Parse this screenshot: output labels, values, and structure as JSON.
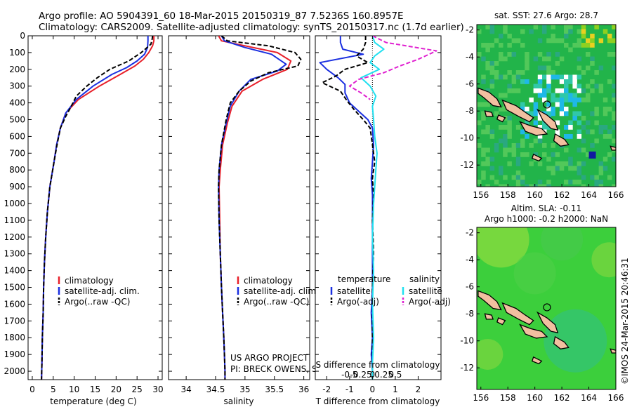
{
  "header": {
    "line1": "Argo profile: AO 5904391_60 18-Mar-2015 20150319_87 7.5236S 160.8957E",
    "line2": "Climatology: CARS2009. Satellite-adjusted climatology: synTS_20150317.nc (1.7d earlier)"
  },
  "credits": {
    "project": "US ARGO PROJECT",
    "pi": "PI: BRECK OWENS, STEVE JAYNE, P.E. ROBBINS",
    "side": "©IMOS 24-Mar-2015 20:46:31"
  },
  "colors": {
    "climatology": "#e8202a",
    "satellite": "#1a2fe0",
    "argo": "#000000",
    "sat_salinity": "#20e0f0",
    "argo_salinity": "#e020d0",
    "ocean_sst": "#22b44a",
    "ocean_sla": "#3ccf3c",
    "land": "#f2bfa0"
  },
  "chart_data": [
    {
      "type": "line",
      "id": "temperature",
      "xlabel": "temperature (deg C)",
      "ylim": [
        2050,
        0
      ],
      "xlim": [
        -1,
        31
      ],
      "xticks": [
        0,
        5,
        10,
        15,
        20,
        25,
        30
      ],
      "yticks": [
        0,
        100,
        200,
        300,
        400,
        500,
        600,
        700,
        800,
        900,
        1000,
        1100,
        1200,
        1300,
        1400,
        1500,
        1600,
        1700,
        1800,
        1900,
        2000
      ],
      "legend": [
        "climatology",
        "satellite-adj. clim.",
        "Argo(..raw -QC)"
      ],
      "series": [
        {
          "name": "climatology",
          "color": "#e8202a",
          "width": 2,
          "dash": "",
          "x": [
            29.0,
            29.0,
            28.7,
            27.8,
            26.5,
            24.5,
            21.0,
            16.0,
            11.0,
            8.0,
            6.7,
            5.8,
            5.2,
            4.2,
            3.6,
            3.2,
            2.9,
            2.7,
            2.6,
            2.4,
            2.3,
            2.2
          ],
          "y": [
            0,
            30,
            60,
            100,
            140,
            180,
            230,
            300,
            380,
            460,
            550,
            650,
            750,
            900,
            1050,
            1200,
            1350,
            1500,
            1650,
            1800,
            1950,
            2050
          ]
        },
        {
          "name": "satellite-adj. clim.",
          "color": "#1a2fe0",
          "width": 2,
          "dash": "",
          "x": [
            27.6,
            27.6,
            27.5,
            26.8,
            25.0,
            22.5,
            19.0,
            14.5,
            10.5,
            8.0,
            6.7,
            5.8,
            5.2,
            4.2,
            3.6,
            3.2,
            2.9,
            2.7,
            2.6,
            2.4,
            2.3,
            2.2
          ],
          "y": [
            0,
            30,
            70,
            110,
            150,
            190,
            230,
            300,
            380,
            460,
            550,
            650,
            750,
            900,
            1050,
            1200,
            1350,
            1500,
            1650,
            1800,
            1950,
            2050
          ]
        },
        {
          "name": "Argo(..raw -QC)",
          "color": "#000000",
          "width": 2,
          "dash": "6,3",
          "x": [
            28.7,
            28.6,
            28.3,
            26.0,
            23.0,
            18.5,
            15.5,
            13.0,
            10.5,
            9.3,
            8.0,
            6.7,
            5.9,
            5.2,
            4.2,
            3.6,
            3.2,
            2.9,
            2.7,
            2.6,
            2.4,
            2.3,
            2.2
          ],
          "y": [
            0,
            20,
            50,
            100,
            150,
            200,
            250,
            300,
            360,
            420,
            480,
            550,
            650,
            750,
            900,
            1050,
            1200,
            1350,
            1500,
            1650,
            1800,
            1950,
            2050
          ]
        }
      ]
    },
    {
      "type": "line",
      "id": "salinity",
      "xlabel": "salinity",
      "ylim": [
        2050,
        0
      ],
      "xlim": [
        33.7,
        36.1
      ],
      "xticks": [
        34,
        34.5,
        35,
        35.5,
        36
      ],
      "legend": [
        "climatology",
        "satellite-adj. clim.",
        "Argo(..raw -QC)"
      ],
      "series": [
        {
          "name": "climatology",
          "color": "#e8202a",
          "width": 2,
          "dash": "",
          "x": [
            34.55,
            34.6,
            35.0,
            35.55,
            35.78,
            35.72,
            35.3,
            34.95,
            34.78,
            34.7,
            34.62,
            34.58,
            34.56,
            34.57,
            34.58,
            34.6,
            34.62,
            34.64,
            34.65,
            34.66,
            34.66
          ],
          "y": [
            0,
            30,
            60,
            100,
            150,
            200,
            260,
            330,
            420,
            520,
            650,
            800,
            900,
            1100,
            1300,
            1500,
            1650,
            1800,
            1900,
            2000,
            2050
          ]
        },
        {
          "name": "satellite-adj. clim.",
          "color": "#1a2fe0",
          "width": 2,
          "dash": "",
          "x": [
            34.6,
            34.65,
            35.0,
            35.45,
            35.7,
            35.55,
            35.1,
            34.9,
            34.75,
            34.68,
            34.6,
            34.56,
            34.55,
            34.56,
            34.58,
            34.6,
            34.62,
            34.64,
            34.65,
            34.66,
            34.66
          ],
          "y": [
            0,
            30,
            70,
            110,
            170,
            210,
            260,
            330,
            420,
            520,
            650,
            800,
            900,
            1100,
            1300,
            1500,
            1650,
            1800,
            1900,
            2000,
            2050
          ]
        },
        {
          "name": "Argo(..raw -QC)",
          "color": "#000000",
          "width": 2,
          "dash": "6,3",
          "x": [
            34.6,
            34.7,
            35.4,
            35.85,
            35.95,
            35.9,
            35.4,
            35.1,
            34.9,
            34.75,
            34.68,
            34.6,
            34.56,
            34.55,
            34.56,
            34.58,
            34.6,
            34.62,
            34.64,
            34.65,
            34.66,
            34.66
          ],
          "y": [
            0,
            30,
            60,
            100,
            140,
            180,
            220,
            270,
            330,
            400,
            500,
            650,
            800,
            900,
            1100,
            1300,
            1500,
            1650,
            1800,
            1900,
            2000,
            2050
          ]
        }
      ]
    },
    {
      "type": "line",
      "id": "differences",
      "xlabel": "T difference from climatology",
      "top_xlabel": "S difference from climatology",
      "ylim": [
        2050,
        0
      ],
      "xlim": [
        -2.5,
        3.0
      ],
      "xticks": [
        -2,
        -1,
        0,
        1,
        2
      ],
      "top_ticks": [
        "-0.5",
        "-0.25",
        "0",
        "0.25",
        "0.5"
      ],
      "legend": {
        "temperature_header": "temperature",
        "salinity_header": "salinity",
        "temperature": [
          "satellite",
          "Argo(-adj)"
        ],
        "salinity": [
          "satellite",
          "Argo(-adj)"
        ]
      },
      "series": [
        {
          "name": "satellite",
          "group": "temperature",
          "color": "#1a2fe0",
          "width": 2,
          "dash": "",
          "x": [
            -1.4,
            -1.4,
            -1.3,
            -0.4,
            -2.3,
            -2.0,
            -1.5,
            -1.2,
            -1.2,
            -1.0,
            -0.6,
            -0.2,
            0.0,
            0.05,
            0.0,
            -0.05,
            0.0,
            0.0,
            0.0,
            0.0,
            -0.05,
            0.0,
            -0.05,
            0.0,
            0.0
          ],
          "y": [
            0,
            40,
            80,
            110,
            160,
            200,
            250,
            290,
            340,
            400,
            450,
            500,
            550,
            650,
            750,
            850,
            950,
            1100,
            1300,
            1500,
            1650,
            1800,
            1900,
            2000,
            2050
          ]
        },
        {
          "name": "Argo(-adj)",
          "group": "temperature",
          "color": "#000000",
          "width": 2,
          "dash": "6,3",
          "x": [
            -0.3,
            -0.3,
            -0.4,
            -0.7,
            -0.2,
            -1.2,
            -1.6,
            -2.2,
            -1.4,
            -1.1,
            -0.8,
            -0.4,
            -0.1,
            0.0,
            0.1,
            0.0,
            0.05,
            0.0,
            0.05,
            0.0,
            0.0,
            0.0,
            0.0,
            0.0
          ],
          "y": [
            0,
            40,
            80,
            120,
            160,
            200,
            240,
            280,
            330,
            390,
            440,
            500,
            550,
            650,
            750,
            850,
            950,
            1100,
            1300,
            1500,
            1650,
            1800,
            1950,
            2050
          ]
        },
        {
          "name": "satellite",
          "group": "salinity",
          "color": "#20e0f0",
          "width": 2,
          "dash": "",
          "x": [
            0.0,
            0.1,
            0.5,
            0.1,
            -0.1,
            0.3,
            -0.5,
            -0.1,
            0.15,
            0.0,
            0.05,
            0.1,
            0.2,
            0.15,
            0.1,
            0.05,
            0.0,
            0.05,
            0.0,
            0.05,
            0.0,
            0.0
          ],
          "y": [
            0,
            40,
            80,
            120,
            160,
            200,
            250,
            300,
            360,
            420,
            500,
            600,
            700,
            800,
            900,
            1000,
            1200,
            1400,
            1600,
            1800,
            1950,
            2050
          ]
        },
        {
          "name": "Argo(-adj)",
          "group": "salinity",
          "color": "#e020d0",
          "width": 2,
          "dash": "6,3",
          "x": [
            0.0,
            0.6,
            2.8,
            2.0,
            1.2,
            0.5,
            -0.6,
            -1.0,
            -0.5,
            -0.1
          ],
          "y": [
            0,
            40,
            90,
            140,
            180,
            220,
            260,
            300,
            340,
            380
          ]
        }
      ]
    },
    {
      "type": "heatmap",
      "id": "sst_map",
      "title": "sat. SST: 27.6 Argo: 28.7",
      "xlim": [
        155.7,
        166
      ],
      "ylim": [
        -13.6,
        -1.6
      ],
      "xticks": [
        156,
        158,
        160,
        162,
        164,
        166
      ],
      "yticks": [
        -2,
        -4,
        -6,
        -8,
        -10,
        -12
      ],
      "float_position": [
        160.9,
        -7.52
      ]
    },
    {
      "type": "heatmap",
      "id": "sla_map",
      "title_line1": "Altim. SLA: -0.11",
      "title_line2": "Argo h1000: -0.2 h2000: NaN",
      "xlim": [
        155.7,
        166
      ],
      "ylim": [
        -13.6,
        -1.6
      ],
      "xticks": [
        156,
        158,
        160,
        162,
        164,
        166
      ],
      "yticks": [
        -2,
        -4,
        -6,
        -8,
        -10,
        -12
      ],
      "float_position": [
        160.9,
        -7.52
      ]
    }
  ]
}
